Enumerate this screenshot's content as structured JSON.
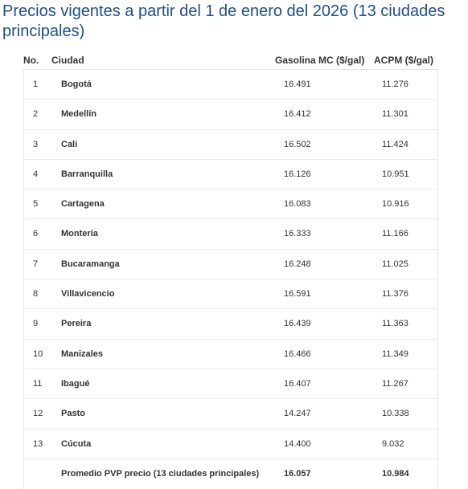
{
  "title": "Precios vigentes a partir del 1 de enero del 2026 (13 ciudades principales)",
  "table": {
    "headers": {
      "no": "No.",
      "city": "Ciudad",
      "gasoline": "Gasolina MC ($/gal)",
      "acpm": "ACPM ($/gal)"
    },
    "rows": [
      {
        "no": "1",
        "city": "Bogotá",
        "gasoline": "16.491",
        "acpm": "11.276"
      },
      {
        "no": "2",
        "city": "Medellín",
        "gasoline": "16.412",
        "acpm": "11.301"
      },
      {
        "no": "3",
        "city": "Cali",
        "gasoline": "16.502",
        "acpm": "11.424"
      },
      {
        "no": "4",
        "city": "Barranquilla",
        "gasoline": "16.126",
        "acpm": "10.951"
      },
      {
        "no": "5",
        "city": "Cartagena",
        "gasoline": "16.083",
        "acpm": "10.916"
      },
      {
        "no": "6",
        "city": "Montería",
        "gasoline": "16.333",
        "acpm": "11.166"
      },
      {
        "no": "7",
        "city": "Bucaramanga",
        "gasoline": "16.248",
        "acpm": "11.025"
      },
      {
        "no": "8",
        "city": "Villavicencio",
        "gasoline": "16.591",
        "acpm": "11.376"
      },
      {
        "no": "9",
        "city": "Pereira",
        "gasoline": "16.439",
        "acpm": "11.363"
      },
      {
        "no": "10",
        "city": "Manizales",
        "gasoline": "16.466",
        "acpm": "11.349"
      },
      {
        "no": "11",
        "city": "Ibagué",
        "gasoline": "16.407",
        "acpm": "11.267"
      },
      {
        "no": "12",
        "city": "Pasto",
        "gasoline": "14.247",
        "acpm": "10.338"
      },
      {
        "no": "13",
        "city": "Cúcuta",
        "gasoline": "14.400",
        "acpm": "9.032"
      }
    ],
    "average": {
      "label": "Promedio PVP precio (13 ciudades principales)",
      "gasoline": "16.057",
      "acpm": "10.984"
    }
  }
}
